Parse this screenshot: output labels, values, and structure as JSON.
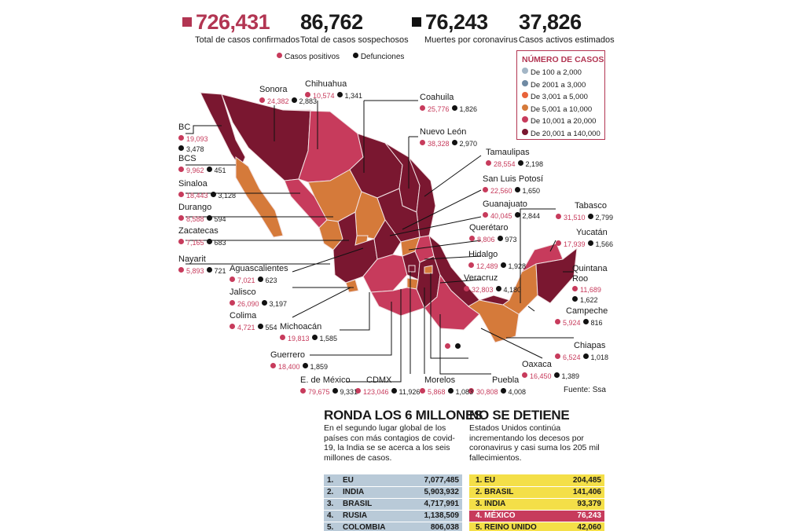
{
  "colors": {
    "accent": "#b23552",
    "positive": "#c73b5c",
    "deaths": "#111111",
    "scale": [
      "#a3b6c6",
      "#6f8aa3",
      "#e8633a",
      "#d57a3a",
      "#c73b5c",
      "#7a1730"
    ]
  },
  "header": {
    "confirmed": {
      "value": "726,431",
      "label": "Total de casos confirmados"
    },
    "suspected": {
      "value": "86,762",
      "label": "Total de casos sospechosos"
    },
    "deaths": {
      "value": "76,243",
      "label": "Muertes por coronavirus"
    },
    "active": {
      "value": "37,826",
      "label": "Casos activos estimados"
    }
  },
  "legend": {
    "positive": "Casos positivos",
    "deaths": "Defunciones"
  },
  "key": {
    "title": "NÚMERO DE CASOS",
    "items": [
      {
        "label": "De 100 a 2,000",
        "color": "#a3b6c6"
      },
      {
        "label": "De 2001 a 3,000",
        "color": "#6f8aa3"
      },
      {
        "label": "De 3,001 a 5,000",
        "color": "#e8633a"
      },
      {
        "label": "De 5,001 a 10,000",
        "color": "#d57a3a"
      },
      {
        "label": "De 10,001 a 20,000",
        "color": "#c73b5c"
      },
      {
        "label": "De 20,001 a 140,000",
        "color": "#7a1730"
      }
    ]
  },
  "states": {
    "sonora": {
      "name": "Sonora",
      "cases": "24,382",
      "deaths": "2,883"
    },
    "chihuahua": {
      "name": "Chihuahua",
      "cases": "10,574",
      "deaths": "1,341"
    },
    "coahuila": {
      "name": "Coahuila",
      "cases": "25,776",
      "deaths": "1,826"
    },
    "nuevo_leon": {
      "name": "Nuevo León",
      "cases": "38,328",
      "deaths": "2,970"
    },
    "tamaulipas": {
      "name": "Tamaulipas",
      "cases": "28,554",
      "deaths": "2,198"
    },
    "slp": {
      "name": "San Luis Potosí",
      "cases": "22,560",
      "deaths": "1,650"
    },
    "guanajuato": {
      "name": "Guanajuato",
      "cases": "40,045",
      "deaths": "2,844"
    },
    "queretaro": {
      "name": "Querétaro",
      "cases": "8,806",
      "deaths": "973"
    },
    "hidalgo": {
      "name": "Hidalgo",
      "cases": "12,489",
      "deaths": "1,928"
    },
    "veracruz": {
      "name": "Veracruz",
      "cases": "32,803",
      "deaths": "4,180"
    },
    "tabasco": {
      "name": "Tabasco",
      "cases": "31,510",
      "deaths": "2,799"
    },
    "yucatan": {
      "name": "Yucatán",
      "cases": "17,939",
      "deaths": "1,566"
    },
    "quintana_roo": {
      "name": "Quintana",
      "name2": "Roo",
      "cases": "11,689",
      "deaths": "1,622"
    },
    "campeche": {
      "name": "Campeche",
      "cases": "5,924",
      "deaths": "816"
    },
    "chiapas": {
      "name": "Chiapas",
      "cases": "6,524",
      "deaths": "1,018"
    },
    "oaxaca": {
      "name": "Oaxaca",
      "cases": "16,450",
      "deaths": "1,389"
    },
    "puebla": {
      "name": "Puebla",
      "cases": "30,808",
      "deaths": "4,008"
    },
    "morelos": {
      "name": "Morelos",
      "cases": "5,868",
      "deaths": "1,083"
    },
    "cdmx": {
      "name": "CDMX",
      "cases": "123,046",
      "deaths": "11,926"
    },
    "edomex": {
      "name": "E. de México",
      "cases": "79,675",
      "deaths": "9,331"
    },
    "guerrero": {
      "name": "Guerrero",
      "cases": "18,400",
      "deaths": "1,859"
    },
    "michoacan": {
      "name": "Michoacán",
      "cases": "19,813",
      "deaths": "1,585"
    },
    "colima": {
      "name": "Colima",
      "cases": "4,721",
      "deaths": "554"
    },
    "jalisco": {
      "name": "Jalisco",
      "cases": "26,090",
      "deaths": "3,197"
    },
    "aguascalientes": {
      "name": "Aguascalientes",
      "cases": "7,021",
      "deaths": "623"
    },
    "nayarit": {
      "name": "Nayarit",
      "cases": "5,893",
      "deaths": "721"
    },
    "zacatecas": {
      "name": "Zacatecas",
      "cases": "7,165",
      "deaths": "683"
    },
    "durango": {
      "name": "Durango",
      "cases": "8,588",
      "deaths": "594"
    },
    "sinaloa": {
      "name": "Sinaloa",
      "cases": "18,443",
      "deaths": "3,128"
    },
    "bcs": {
      "name": "BCS",
      "cases": "9,962",
      "deaths": "451"
    },
    "bc": {
      "name": "BC",
      "cases": "19,093",
      "deaths": "3,478"
    }
  },
  "source": "Fuente: Ssa",
  "world": {
    "title": "RONDA LOS 6 MILLONES",
    "text": "En el segundo lugar global de los países con más contagios de covid-19, la India se se acerca a los seis millones de casos.",
    "rows": [
      {
        "rank": "1.",
        "country": "EU",
        "value": "7,077,485"
      },
      {
        "rank": "2.",
        "country": "INDIA",
        "value": "5,903,932"
      },
      {
        "rank": "3.",
        "country": "BRASIL",
        "value": "4,717,991"
      },
      {
        "rank": "4.",
        "country": "RUSIA",
        "value": "1,138,509"
      },
      {
        "rank": "5.",
        "country": "COLOMBIA",
        "value": "806,038"
      }
    ]
  },
  "us": {
    "title": "NO SE DETIENE",
    "text": "Estados Unidos continúa incrementando los decesos por coronavirus y casi suma los 205 mil fallecimientos.",
    "rows": [
      {
        "label": "1. EU",
        "value": "204,485"
      },
      {
        "label": "2. BRASIL",
        "value": "141,406"
      },
      {
        "label": "3. INDIA",
        "value": "93,379"
      },
      {
        "label": "4. MÉXICO",
        "value": "76,243"
      },
      {
        "label": "5. REINO UNIDO",
        "value": "42,060"
      }
    ]
  }
}
